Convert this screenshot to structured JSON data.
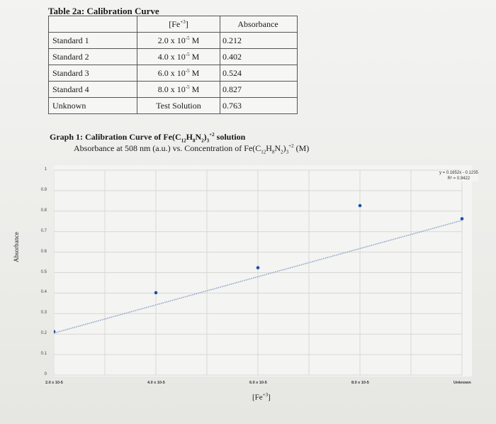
{
  "table": {
    "title": "Table 2a: Calibration Curve",
    "header": [
      "",
      "[Fe+3]",
      "Absorbance"
    ],
    "rows": [
      {
        "label": "Standard 1",
        "conc": "2.0 x 10-5 M",
        "abs": "0.212"
      },
      {
        "label": "Standard 2",
        "conc": "4.0 x 10-5 M",
        "abs": "0.402"
      },
      {
        "label": "Standard 3",
        "conc": "6.0 x 10-5 M",
        "abs": "0.524"
      },
      {
        "label": "Standard 4",
        "conc": "8.0 x 10-5 M",
        "abs": "0.827"
      },
      {
        "label": "Unknown",
        "conc": "Test Solution",
        "abs": "0.763"
      }
    ]
  },
  "chart_data": {
    "type": "scatter",
    "title": "Graph 1: Calibration Curve of Fe(C12H8N2)3+2 solution",
    "subtitle": "Absorbance at 508 nm (a.u.) vs. Concentration of Fe(C12H8N2)3+2 (M)",
    "xlabel": "[Fe+3]",
    "ylabel": "Absorbance",
    "categories": [
      "2.0 x 10-5",
      "4.0 x 10-5",
      "6.0 x 10-5",
      "8.0 x 10-5",
      "Unknown"
    ],
    "values": [
      0.212,
      0.402,
      0.524,
      0.827,
      0.763
    ],
    "ylim": [
      0,
      1
    ],
    "yticks": [
      "0",
      "0.1",
      "0.2",
      "0.3",
      "0.4",
      "0.5",
      "0.6",
      "0.7",
      "0.8",
      "0.9",
      "1"
    ],
    "trendline": {
      "equation": "y = 0.1652x - 0.1235",
      "r2": "R² = 0.9422"
    },
    "grid": true,
    "colors": {
      "points": "#1f4fa3",
      "trendline": "#8fa3c8"
    }
  }
}
